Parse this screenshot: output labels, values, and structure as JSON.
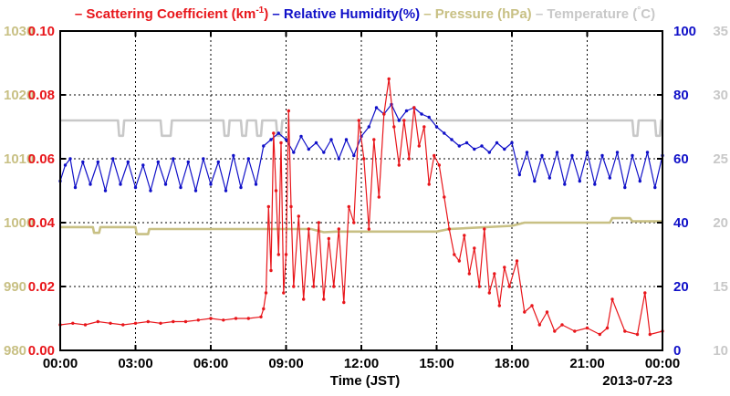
{
  "chart_data": {
    "type": "line",
    "legend": {
      "placement": "top",
      "entries": [
        {
          "prefix": "–",
          "text_main": "Scattering Coefficient (km",
          "text_sup": "-1",
          "text_end": ")",
          "color": "#e8161b"
        },
        {
          "prefix": "–",
          "text_main": "Relative Humidity(%)",
          "text_sup": "",
          "text_end": "",
          "color": "#1010c8"
        },
        {
          "prefix": "–",
          "text_main": "Pressure (hPa)",
          "text_sup": "",
          "text_end": "",
          "color": "#c8c084"
        },
        {
          "prefix": "–",
          "text_main": "Temperature (",
          "text_sup": "°",
          "text_end": "C)",
          "color": "#c8c8c8"
        }
      ]
    },
    "xlabel": "Time (JST)",
    "date_label": "2013-07-23",
    "x_unit": "hours",
    "xlim": [
      0,
      24
    ],
    "x_ticks": [
      0,
      3,
      6,
      9,
      12,
      15,
      18,
      21,
      24
    ],
    "x_tick_labels": [
      "00:00",
      "03:00",
      "06:00",
      "09:00",
      "12:00",
      "15:00",
      "18:00",
      "21:00",
      "00:00"
    ],
    "grid": true,
    "axes": {
      "scattering": {
        "range": [
          0,
          0.1
        ],
        "ticks": [
          "0.00",
          "0.02",
          "0.04",
          "0.06",
          "0.08",
          "0.10"
        ],
        "color": "#e8161b",
        "side": "left-inner"
      },
      "pressure": {
        "range": [
          980,
          1030
        ],
        "ticks": [
          "980",
          "990",
          "1000",
          "1010",
          "1020",
          "1030"
        ],
        "color": "#c8c084",
        "side": "left-outer"
      },
      "humidity": {
        "range": [
          0,
          100
        ],
        "ticks": [
          "0",
          "20",
          "40",
          "60",
          "80",
          "100"
        ],
        "color": "#1010c8",
        "side": "right-inner"
      },
      "temperature": {
        "range": [
          10,
          35
        ],
        "ticks": [
          "10",
          "15",
          "20",
          "25",
          "30",
          "35"
        ],
        "color": "#c8c8c8",
        "side": "right-outer"
      }
    },
    "series": [
      {
        "name": "Scattering Coefficient",
        "axis": "scattering",
        "color": "#e8161b",
        "marker": true,
        "x": [
          0,
          0.5,
          1,
          1.5,
          2,
          2.5,
          3,
          3.5,
          4,
          4.5,
          5,
          5.5,
          6,
          6.5,
          7,
          7.5,
          8,
          8.1,
          8.2,
          8.3,
          8.4,
          8.5,
          8.6,
          8.7,
          8.8,
          8.9,
          9.0,
          9.1,
          9.2,
          9.3,
          9.5,
          9.7,
          9.9,
          10.1,
          10.3,
          10.5,
          10.7,
          10.9,
          11.1,
          11.3,
          11.5,
          11.7,
          11.9,
          12.1,
          12.3,
          12.5,
          12.7,
          12.9,
          13.1,
          13.3,
          13.5,
          13.7,
          13.9,
          14.1,
          14.3,
          14.5,
          14.7,
          14.9,
          15.1,
          15.3,
          15.5,
          15.7,
          15.9,
          16.1,
          16.3,
          16.5,
          16.7,
          16.9,
          17.1,
          17.3,
          17.5,
          17.7,
          17.9,
          18.2,
          18.5,
          18.8,
          19.1,
          19.4,
          19.7,
          20.0,
          20.5,
          21.0,
          21.5,
          21.8,
          22.0,
          22.5,
          23.0,
          23.3,
          23.5,
          24.0
        ],
        "y": [
          0.008,
          0.0085,
          0.008,
          0.009,
          0.0085,
          0.008,
          0.0085,
          0.009,
          0.0085,
          0.009,
          0.009,
          0.0095,
          0.01,
          0.0095,
          0.01,
          0.01,
          0.0105,
          0.013,
          0.018,
          0.045,
          0.025,
          0.068,
          0.05,
          0.03,
          0.065,
          0.018,
          0.03,
          0.075,
          0.045,
          0.02,
          0.042,
          0.016,
          0.038,
          0.02,
          0.04,
          0.016,
          0.035,
          0.02,
          0.038,
          0.015,
          0.045,
          0.04,
          0.072,
          0.06,
          0.038,
          0.066,
          0.048,
          0.074,
          0.085,
          0.07,
          0.058,
          0.072,
          0.06,
          0.076,
          0.064,
          0.07,
          0.052,
          0.061,
          0.058,
          0.048,
          0.038,
          0.03,
          0.028,
          0.036,
          0.024,
          0.032,
          0.02,
          0.038,
          0.018,
          0.024,
          0.014,
          0.026,
          0.02,
          0.028,
          0.012,
          0.014,
          0.008,
          0.012,
          0.006,
          0.008,
          0.006,
          0.007,
          0.005,
          0.007,
          0.016,
          0.006,
          0.005,
          0.018,
          0.005,
          0.006
        ]
      },
      {
        "name": "Relative Humidity",
        "axis": "humidity",
        "color": "#1010c8",
        "marker": true,
        "x": [
          0,
          0.2,
          0.4,
          0.6,
          0.9,
          1.2,
          1.5,
          1.8,
          2.1,
          2.4,
          2.7,
          3.0,
          3.3,
          3.6,
          3.9,
          4.2,
          4.5,
          4.8,
          5.1,
          5.4,
          5.7,
          6.0,
          6.3,
          6.6,
          6.9,
          7.2,
          7.5,
          7.8,
          8.1,
          8.4,
          8.7,
          9.0,
          9.3,
          9.6,
          9.9,
          10.2,
          10.5,
          10.8,
          11.1,
          11.4,
          11.7,
          12.0,
          12.3,
          12.6,
          12.9,
          13.2,
          13.5,
          13.8,
          14.1,
          14.4,
          14.7,
          15.0,
          15.3,
          15.6,
          15.9,
          16.2,
          16.5,
          16.8,
          17.1,
          17.4,
          17.7,
          18.0,
          18.3,
          18.6,
          18.9,
          19.2,
          19.5,
          19.8,
          20.1,
          20.4,
          20.7,
          21.0,
          21.3,
          21.6,
          21.9,
          22.2,
          22.5,
          22.8,
          23.1,
          23.4,
          23.7,
          24.0
        ],
        "y": [
          53,
          58,
          60,
          51,
          59,
          52,
          59,
          50,
          60,
          52,
          59,
          51,
          58,
          50,
          59,
          52,
          60,
          51,
          59,
          50,
          60,
          52,
          59,
          50,
          61,
          51,
          60,
          52,
          64,
          66,
          68,
          66,
          62,
          67,
          63,
          65,
          62,
          66,
          60,
          66,
          61,
          67,
          70,
          76,
          74,
          77,
          72,
          75,
          76,
          74,
          73,
          70,
          68,
          66,
          64,
          65,
          63,
          64,
          62,
          65,
          63,
          65,
          55,
          62,
          53,
          61,
          54,
          62,
          52,
          61,
          53,
          62,
          52,
          61,
          54,
          62,
          51,
          61,
          53,
          62,
          51,
          61
        ]
      },
      {
        "name": "Pressure",
        "axis": "pressure",
        "color": "#c8c084",
        "marker": false,
        "x": [
          0,
          1.3,
          1.35,
          1.55,
          1.6,
          3.0,
          3.05,
          3.5,
          3.55,
          8.5,
          10.0,
          10.5,
          11.0,
          12.0,
          15.0,
          15.5,
          18.0,
          18.5,
          21.0,
          21.5,
          21.9,
          22.0,
          22.7,
          22.8,
          24.0
        ],
        "y": [
          999.3,
          999.3,
          998.4,
          998.4,
          999.3,
          999.3,
          998.2,
          998.2,
          999.0,
          999.0,
          999.0,
          998.5,
          998.6,
          998.6,
          998.6,
          999.0,
          999.5,
          1000.0,
          1000.0,
          1000.0,
          1000.0,
          1000.7,
          1000.7,
          1000.2,
          1000.2
        ]
      },
      {
        "name": "Temperature",
        "axis": "temperature",
        "color": "#c8c8c8",
        "marker": false,
        "x": [
          0,
          2.3,
          2.35,
          2.5,
          2.55,
          4.0,
          4.05,
          4.4,
          4.45,
          6.5,
          6.55,
          6.7,
          6.75,
          7.2,
          7.25,
          7.4,
          7.45,
          7.8,
          7.85,
          8.0,
          8.05,
          8.6,
          8.65,
          8.8,
          8.85,
          22.8,
          22.85,
          23.0,
          23.05,
          23.7,
          23.75,
          23.9,
          23.95,
          24.0
        ],
        "y": [
          28,
          28,
          26.8,
          26.8,
          28,
          28,
          26.8,
          26.8,
          28,
          28,
          26.8,
          26.8,
          28,
          28,
          26.8,
          26.8,
          28,
          28,
          26.8,
          26.8,
          28,
          28,
          26.8,
          26.8,
          28,
          28,
          26.8,
          26.8,
          28,
          28,
          26.8,
          26.8,
          28,
          28
        ]
      }
    ]
  }
}
